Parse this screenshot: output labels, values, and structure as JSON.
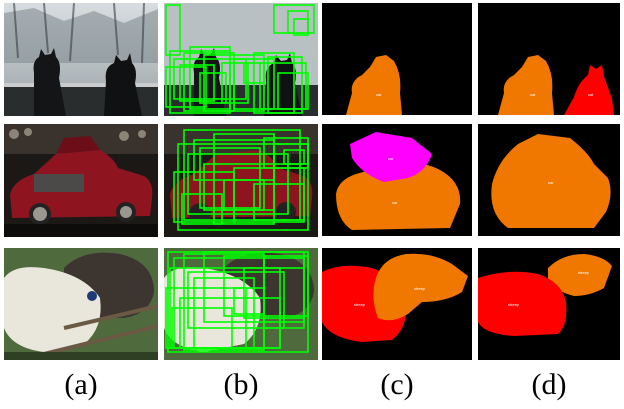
{
  "figure": {
    "column_labels": [
      "(a)",
      "(b)",
      "(c)",
      "(d)"
    ],
    "rows": [
      {
        "c_labels": [
          "cat"
        ],
        "d_labels": [
          "cat",
          "cat"
        ]
      },
      {
        "c_labels": [
          "car",
          "car"
        ],
        "d_labels": [
          "car"
        ]
      },
      {
        "c_labels": [
          "sheep",
          "sheep"
        ],
        "d_labels": [
          "sheep",
          "sheep"
        ]
      }
    ]
  },
  "colors": {
    "background": "#000000",
    "orange_mask": "#f07800",
    "red_mask": "#ff0000",
    "magenta_mask": "#ff00ff",
    "proposal_box": "#00ff00"
  }
}
